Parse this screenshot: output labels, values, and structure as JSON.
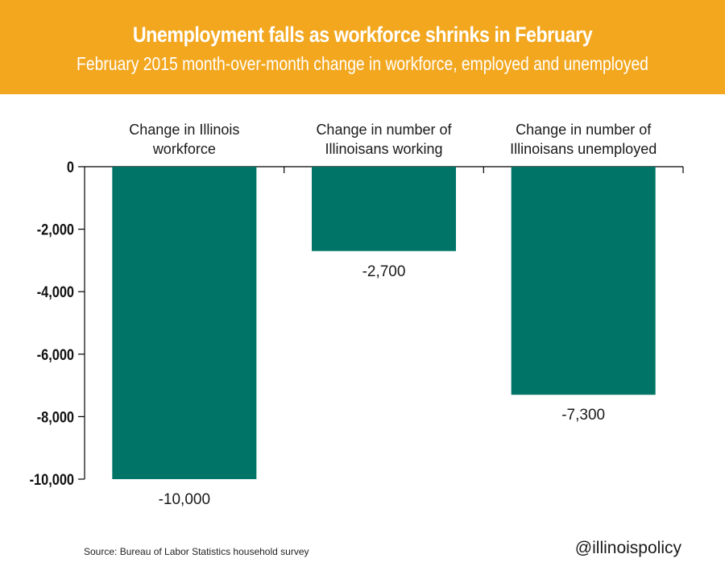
{
  "header": {
    "title": "Unemployment falls as workforce shrinks in February",
    "subtitle": "February 2015 month-over-month change in workforce, employed and unemployed"
  },
  "footer": {
    "source": "Source: Bureau of Labor Statistics household survey",
    "handle": "@illinoispolicy"
  },
  "colors": {
    "banner": "#f2a71f",
    "bar": "#007567"
  },
  "chart_data": {
    "type": "bar",
    "categories": [
      "Change in Illinois workforce",
      "Change in number of Illinoisans working",
      "Change in number of Illinoisans unemployed"
    ],
    "category_lines": [
      [
        "Change in Illinois",
        "workforce"
      ],
      [
        "Change in number of",
        "Illinoisans working"
      ],
      [
        "Change in number of",
        "Illinoisans unemployed"
      ]
    ],
    "values": [
      -10000,
      -2700,
      -7300
    ],
    "data_labels": [
      "-10,000",
      "-2,700",
      "-7,300"
    ],
    "y_ticks": [
      0,
      -2000,
      -4000,
      -6000,
      -8000,
      -10000
    ],
    "y_tick_labels": [
      "0",
      "-2,000",
      "-4,000",
      "-6,000",
      "-8,000",
      "-10,000"
    ],
    "ylim": [
      -10000,
      0
    ],
    "grid": false,
    "legend": "none"
  }
}
